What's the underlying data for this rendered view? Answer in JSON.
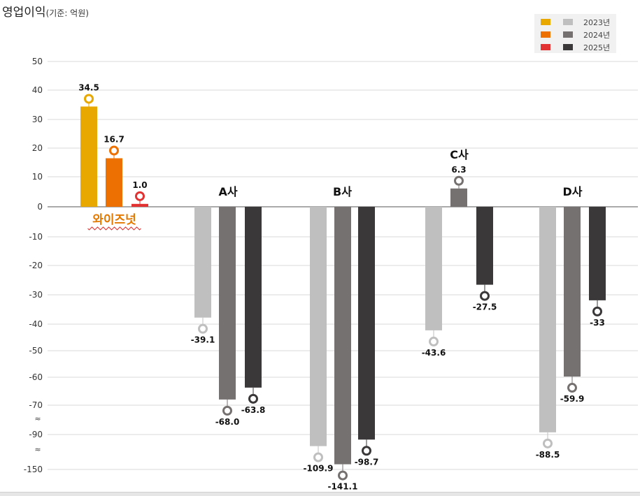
{
  "title": "영업이익",
  "subtitle": "(기준: 억원)",
  "legend": {
    "entries": [
      {
        "label": "2023년",
        "own_color": "#e9a800",
        "peer_color": "#bfbfbf"
      },
      {
        "label": "2024년",
        "own_color": "#ed7102",
        "peer_color": "#767171"
      },
      {
        "label": "2025년",
        "own_color": "#e33232",
        "peer_color": "#3a3838"
      }
    ]
  },
  "chart_data": {
    "type": "bar",
    "y_axis_break": true,
    "y_tick_labels": [
      "50",
      "40",
      "30",
      "20",
      "10",
      "0",
      "-10",
      "-20",
      "-30",
      "-40",
      "-50",
      "-60",
      "-70",
      "-90",
      "-150"
    ],
    "grid": true,
    "categories": [
      "와이즈넛",
      "A사",
      "B사",
      "C사",
      "D사"
    ],
    "series": [
      {
        "name": "2023년",
        "values": [
          34.5,
          -39.1,
          -109.9,
          -43.6,
          -88.5
        ],
        "labels": [
          "34.5",
          "-39.1",
          "-109.9",
          "-43.6",
          "-88.5"
        ]
      },
      {
        "name": "2024년",
        "values": [
          16.7,
          -68.0,
          -141.1,
          6.3,
          -59.9
        ],
        "labels": [
          "16.7",
          "-68.0",
          "-141.1",
          "6.3",
          "-59.9"
        ]
      },
      {
        "name": "2025년",
        "values": [
          1.0,
          -63.8,
          -98.7,
          -27.5,
          -33
        ],
        "labels": [
          "1.0",
          "-63.8",
          "-98.7",
          "-27.5",
          "-33"
        ]
      }
    ],
    "colors": {
      "own": [
        "#e9a800",
        "#ed7102",
        "#e33232"
      ],
      "peer": [
        "#bfbfbf",
        "#767171",
        "#3a3838"
      ],
      "own_label": "#e37800"
    }
  }
}
